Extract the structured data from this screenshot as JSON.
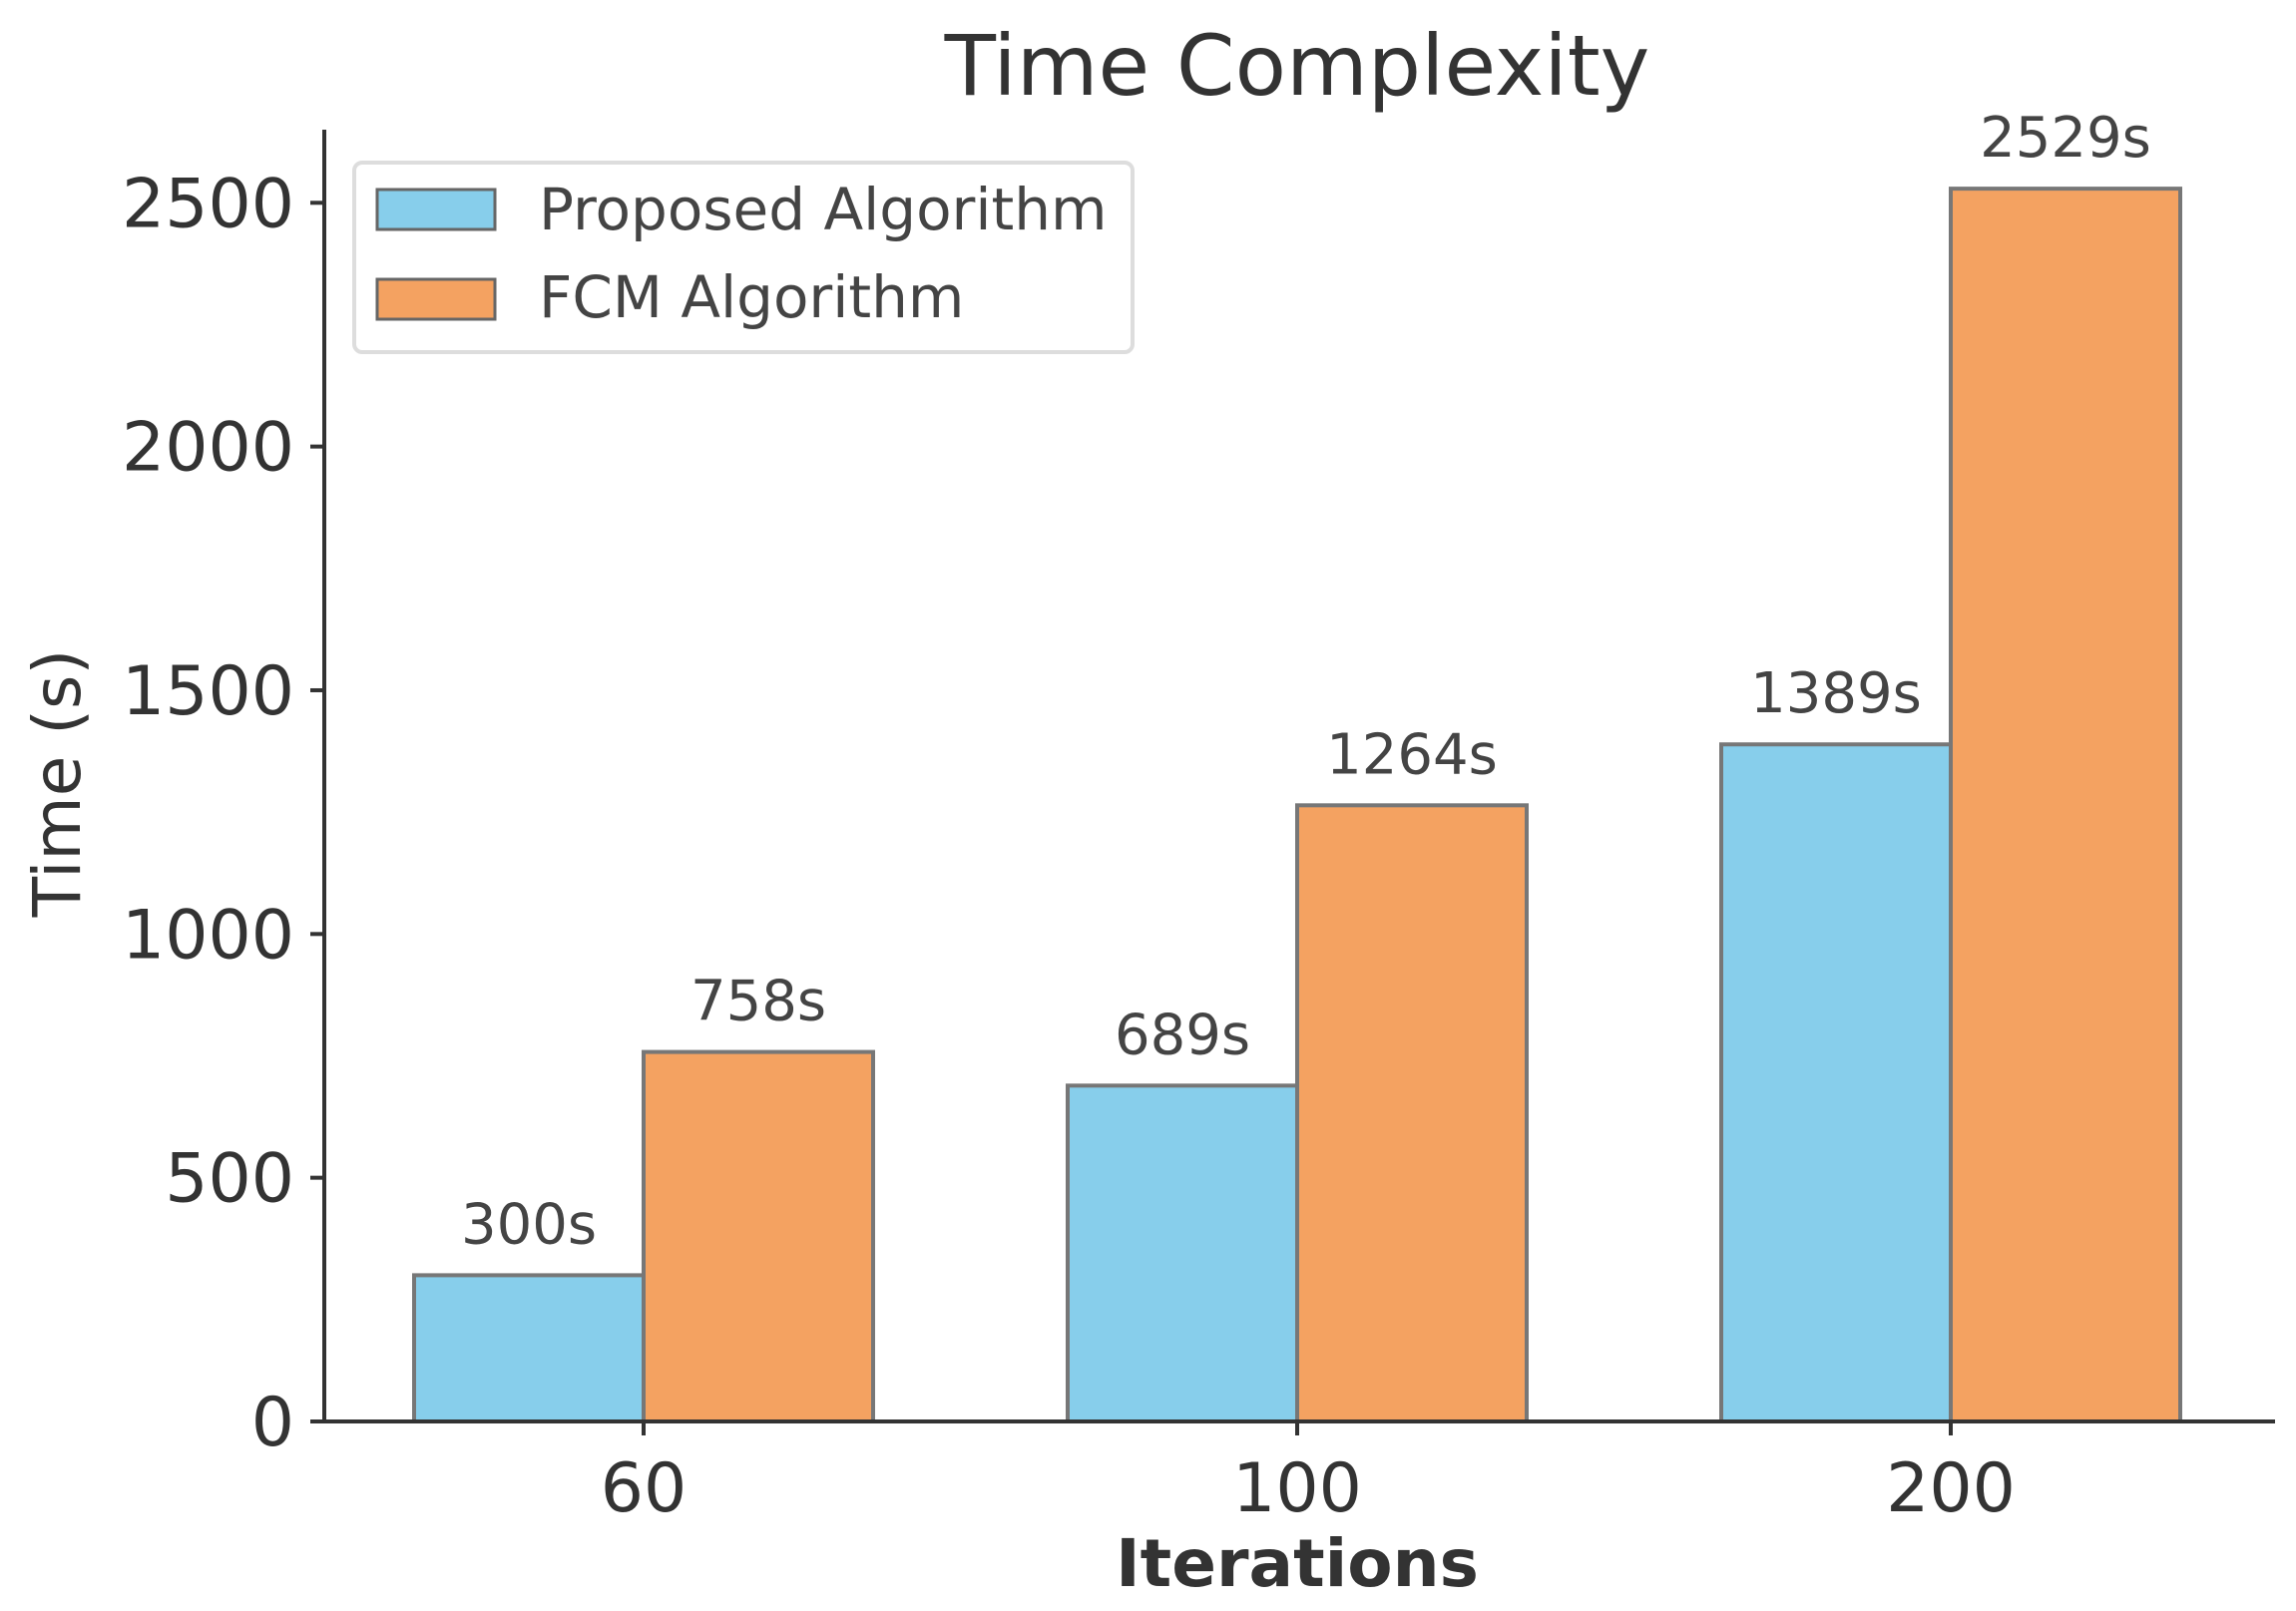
{
  "chart_data": {
    "type": "bar",
    "title": "Time Complexity",
    "xlabel": "Iterations",
    "ylabel": "Time (s)",
    "categories": [
      "60",
      "100",
      "200"
    ],
    "ylim": [
      0,
      2650
    ],
    "yticks": [
      0,
      500,
      1000,
      1500,
      2000,
      2500
    ],
    "grid": false,
    "legend_position": "top-left",
    "series": [
      {
        "name": "Proposed Algorithm",
        "color": "#87CEEB",
        "values": [
          300,
          689,
          1389
        ],
        "labels": [
          "300s",
          "689s",
          "1389s"
        ]
      },
      {
        "name": "FCM Algorithm",
        "color": "#F4A261",
        "values": [
          758,
          1264,
          2529
        ],
        "labels": [
          "758s",
          "1264s",
          "2529s"
        ]
      }
    ]
  }
}
